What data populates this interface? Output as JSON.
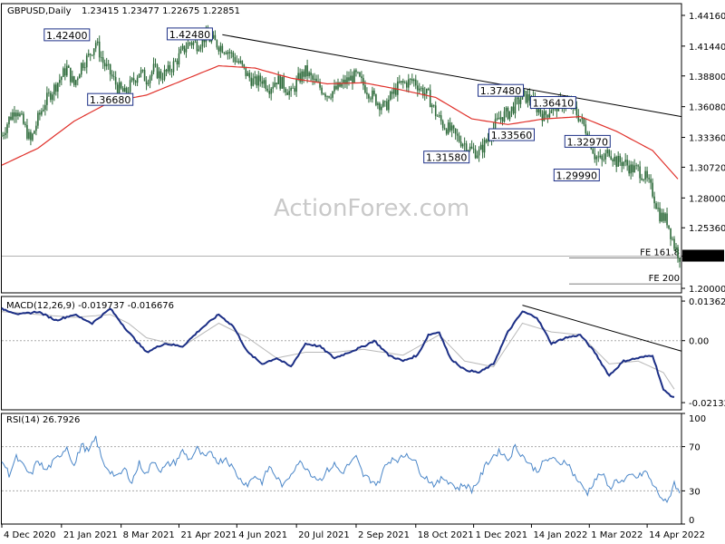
{
  "header": {
    "symbol": "GBPUSD,Daily",
    "ohlc": "1.23415 1.23477 1.22675 1.22851"
  },
  "watermark": "ActionForex.com",
  "colors": {
    "candle": "#2d6a3a",
    "ma": "#e0302a",
    "trend": "#000000",
    "macd": "#1c2f86",
    "signal": "#b8b8b8",
    "rsi": "#4a86c8",
    "label_border": "#1c2f86"
  },
  "chart_data": [
    {
      "type": "candlestick",
      "name": "price",
      "ylim": [
        1.196,
        1.452
      ],
      "y_ticks": [
        "1.44160",
        "1.41440",
        "1.38800",
        "1.36080",
        "1.33360",
        "1.30720",
        "1.28000",
        "1.25360",
        "1.22851",
        "1.20000"
      ],
      "x_ticks": [
        "4 Dec 2020",
        "21 Jan 2021",
        "8 Mar 2021",
        "21 Apr 2021",
        "4 Jun 2021",
        "20 Jul 2021",
        "2 Sep 2021",
        "18 Oct 2021",
        "1 Dec 2021",
        "14 Jan 2022",
        "1 Mar 2022",
        "14 Apr 2022"
      ],
      "x_tick_index": [
        0,
        33,
        66,
        98,
        130,
        163,
        196,
        229,
        261,
        293,
        325,
        357
      ],
      "close_series": [
        [
          0,
          1.335
        ],
        [
          4,
          1.35
        ],
        [
          8,
          1.36
        ],
        [
          12,
          1.345
        ],
        [
          16,
          1.33
        ],
        [
          20,
          1.35
        ],
        [
          24,
          1.365
        ],
        [
          28,
          1.375
        ],
        [
          32,
          1.385
        ],
        [
          36,
          1.395
        ],
        [
          40,
          1.38
        ],
        [
          44,
          1.398
        ],
        [
          48,
          1.405
        ],
        [
          52,
          1.418
        ],
        [
          56,
          1.4
        ],
        [
          60,
          1.39
        ],
        [
          64,
          1.378
        ],
        [
          68,
          1.372
        ],
        [
          72,
          1.382
        ],
        [
          76,
          1.392
        ],
        [
          80,
          1.385
        ],
        [
          84,
          1.394
        ],
        [
          88,
          1.388
        ],
        [
          92,
          1.392
        ],
        [
          96,
          1.4
        ],
        [
          100,
          1.41
        ],
        [
          104,
          1.418
        ],
        [
          108,
          1.416
        ],
        [
          112,
          1.422
        ],
        [
          116,
          1.42
        ],
        [
          120,
          1.415
        ],
        [
          124,
          1.412
        ],
        [
          128,
          1.405
        ],
        [
          132,
          1.398
        ],
        [
          136,
          1.388
        ],
        [
          140,
          1.382
        ],
        [
          144,
          1.385
        ],
        [
          148,
          1.378
        ],
        [
          152,
          1.385
        ],
        [
          156,
          1.38
        ],
        [
          160,
          1.372
        ],
        [
          164,
          1.385
        ],
        [
          168,
          1.392
        ],
        [
          172,
          1.384
        ],
        [
          176,
          1.378
        ],
        [
          180,
          1.372
        ],
        [
          184,
          1.375
        ],
        [
          188,
          1.38
        ],
        [
          192,
          1.385
        ],
        [
          196,
          1.388
        ],
        [
          200,
          1.38
        ],
        [
          204,
          1.372
        ],
        [
          208,
          1.365
        ],
        [
          212,
          1.36
        ],
        [
          216,
          1.372
        ],
        [
          220,
          1.38
        ],
        [
          224,
          1.382
        ],
        [
          228,
          1.384
        ],
        [
          232,
          1.376
        ],
        [
          236,
          1.37
        ],
        [
          240,
          1.355
        ],
        [
          244,
          1.345
        ],
        [
          248,
          1.34
        ],
        [
          252,
          1.333
        ],
        [
          256,
          1.328
        ],
        [
          260,
          1.322
        ],
        [
          264,
          1.32
        ],
        [
          268,
          1.33
        ],
        [
          272,
          1.342
        ],
        [
          276,
          1.352
        ],
        [
          280,
          1.355
        ],
        [
          284,
          1.362
        ],
        [
          288,
          1.37
        ],
        [
          292,
          1.368
        ],
        [
          296,
          1.36
        ],
        [
          300,
          1.352
        ],
        [
          304,
          1.36
        ],
        [
          308,
          1.362
        ],
        [
          312,
          1.365
        ],
        [
          316,
          1.36
        ],
        [
          320,
          1.35
        ],
        [
          324,
          1.338
        ],
        [
          328,
          1.318
        ],
        [
          332,
          1.312
        ],
        [
          336,
          1.322
        ],
        [
          340,
          1.312
        ],
        [
          344,
          1.312
        ],
        [
          348,
          1.306
        ],
        [
          352,
          1.305
        ],
        [
          356,
          1.298
        ],
        [
          360,
          1.285
        ],
        [
          364,
          1.265
        ],
        [
          368,
          1.26
        ],
        [
          372,
          1.238
        ],
        [
          375,
          1.2285
        ]
      ],
      "ma_series": [
        [
          0,
          1.309
        ],
        [
          20,
          1.324
        ],
        [
          40,
          1.348
        ],
        [
          60,
          1.365
        ],
        [
          80,
          1.371
        ],
        [
          100,
          1.384
        ],
        [
          120,
          1.397
        ],
        [
          140,
          1.395
        ],
        [
          160,
          1.386
        ],
        [
          180,
          1.381
        ],
        [
          200,
          1.382
        ],
        [
          220,
          1.376
        ],
        [
          240,
          1.369
        ],
        [
          260,
          1.35
        ],
        [
          280,
          1.345
        ],
        [
          300,
          1.35
        ],
        [
          320,
          1.352
        ],
        [
          340,
          1.339
        ],
        [
          360,
          1.322
        ],
        [
          375,
          1.295
        ]
      ],
      "trendline": [
        [
          122,
          1.4245
        ],
        [
          390,
          1.352
        ]
      ],
      "level_labels": [
        {
          "text": "1.42400",
          "x": 36,
          "y": 1.424
        },
        {
          "text": "1.42480",
          "x": 104,
          "y": 1.4248
        },
        {
          "text": "1.36680",
          "x": 60,
          "y": 1.3668
        },
        {
          "text": "1.37480",
          "x": 276,
          "y": 1.3748
        },
        {
          "text": "1.36410",
          "x": 305,
          "y": 1.3641
        },
        {
          "text": "1.33560",
          "x": 282,
          "y": 1.3356
        },
        {
          "text": "1.31580",
          "x": 246,
          "y": 1.3158
        },
        {
          "text": "1.32970",
          "x": 324,
          "y": 1.3297
        },
        {
          "text": "1.29990",
          "x": 318,
          "y": 1.2999
        }
      ],
      "fib_levels": [
        {
          "text": "FE 161.8",
          "y": 1.2285
        },
        {
          "text": "FE 200",
          "y": 1.2055
        }
      ],
      "last_price": "1.22851"
    },
    {
      "type": "line",
      "name": "MACD",
      "label": "MACD(12,26,9) -0.019737 -0.016676",
      "ylim": [
        -0.0238,
        0.0152
      ],
      "y_ticks": [
        "0.013621",
        "0.00",
        "-0.021325"
      ],
      "zero_line": 0,
      "macd_series": [
        [
          0,
          0.011
        ],
        [
          10,
          0.009
        ],
        [
          20,
          0.01
        ],
        [
          30,
          0.007
        ],
        [
          40,
          0.009
        ],
        [
          50,
          0.006
        ],
        [
          60,
          0.011
        ],
        [
          70,
          0.003
        ],
        [
          80,
          -0.004
        ],
        [
          90,
          -0.001
        ],
        [
          100,
          -0.002
        ],
        [
          110,
          0.004
        ],
        [
          120,
          0.009
        ],
        [
          128,
          0.005
        ],
        [
          136,
          -0.004
        ],
        [
          144,
          -0.008
        ],
        [
          152,
          -0.006
        ],
        [
          160,
          -0.009
        ],
        [
          168,
          -0.001
        ],
        [
          176,
          -0.002
        ],
        [
          184,
          -0.006
        ],
        [
          192,
          -0.004
        ],
        [
          200,
          -0.002
        ],
        [
          206,
          0.0
        ],
        [
          214,
          -0.005
        ],
        [
          222,
          -0.007
        ],
        [
          230,
          -0.005
        ],
        [
          236,
          0.002
        ],
        [
          242,
          0.003
        ],
        [
          248,
          -0.006
        ],
        [
          256,
          -0.01
        ],
        [
          264,
          -0.011
        ],
        [
          272,
          -0.008
        ],
        [
          280,
          0.003
        ],
        [
          288,
          0.01
        ],
        [
          296,
          0.008
        ],
        [
          304,
          -0.001
        ],
        [
          312,
          0.001
        ],
        [
          320,
          0.002
        ],
        [
          328,
          -0.004
        ],
        [
          336,
          -0.012
        ],
        [
          344,
          -0.007
        ],
        [
          352,
          -0.006
        ],
        [
          360,
          -0.005
        ],
        [
          366,
          -0.017
        ],
        [
          372,
          -0.0197
        ]
      ],
      "signal_series": [
        [
          0,
          0.01
        ],
        [
          20,
          0.009
        ],
        [
          40,
          0.008
        ],
        [
          60,
          0.009
        ],
        [
          70,
          0.006
        ],
        [
          80,
          0.001
        ],
        [
          100,
          -0.002
        ],
        [
          120,
          0.006
        ],
        [
          136,
          0.001
        ],
        [
          152,
          -0.006
        ],
        [
          168,
          -0.004
        ],
        [
          184,
          -0.004
        ],
        [
          200,
          -0.003
        ],
        [
          222,
          -0.005
        ],
        [
          242,
          0.002
        ],
        [
          256,
          -0.007
        ],
        [
          272,
          -0.009
        ],
        [
          288,
          0.006
        ],
        [
          304,
          0.003
        ],
        [
          320,
          0.002
        ],
        [
          336,
          -0.008
        ],
        [
          352,
          -0.007
        ],
        [
          366,
          -0.011
        ],
        [
          372,
          -0.0167
        ]
      ],
      "trendline": [
        [
          288,
          0.0122
        ],
        [
          380,
          -0.0036
        ]
      ]
    },
    {
      "type": "line",
      "name": "RSI",
      "label": "RSI(14) 26.7926",
      "ylim": [
        0,
        100
      ],
      "y_ticks": [
        "100",
        "70",
        "30",
        "0"
      ],
      "levels": [
        70,
        30
      ],
      "series": [
        [
          0,
          58
        ],
        [
          4,
          45
        ],
        [
          8,
          60
        ],
        [
          12,
          52
        ],
        [
          16,
          44
        ],
        [
          20,
          58
        ],
        [
          24,
          48
        ],
        [
          28,
          55
        ],
        [
          32,
          62
        ],
        [
          36,
          70
        ],
        [
          40,
          52
        ],
        [
          44,
          72
        ],
        [
          48,
          65
        ],
        [
          52,
          78
        ],
        [
          56,
          55
        ],
        [
          60,
          48
        ],
        [
          64,
          42
        ],
        [
          68,
          50
        ],
        [
          72,
          38
        ],
        [
          76,
          55
        ],
        [
          80,
          45
        ],
        [
          84,
          58
        ],
        [
          88,
          48
        ],
        [
          92,
          54
        ],
        [
          96,
          56
        ],
        [
          100,
          66
        ],
        [
          104,
          58
        ],
        [
          108,
          68
        ],
        [
          112,
          60
        ],
        [
          116,
          64
        ],
        [
          120,
          56
        ],
        [
          124,
          60
        ],
        [
          128,
          50
        ],
        [
          132,
          40
        ],
        [
          136,
          36
        ],
        [
          140,
          44
        ],
        [
          144,
          38
        ],
        [
          148,
          52
        ],
        [
          152,
          42
        ],
        [
          156,
          34
        ],
        [
          160,
          46
        ],
        [
          164,
          56
        ],
        [
          168,
          52
        ],
        [
          172,
          44
        ],
        [
          176,
          40
        ],
        [
          180,
          48
        ],
        [
          184,
          54
        ],
        [
          188,
          46
        ],
        [
          192,
          54
        ],
        [
          196,
          60
        ],
        [
          200,
          44
        ],
        [
          204,
          40
        ],
        [
          208,
          36
        ],
        [
          212,
          52
        ],
        [
          216,
          60
        ],
        [
          220,
          58
        ],
        [
          224,
          64
        ],
        [
          228,
          58
        ],
        [
          232,
          46
        ],
        [
          236,
          40
        ],
        [
          240,
          35
        ],
        [
          244,
          42
        ],
        [
          248,
          38
        ],
        [
          252,
          32
        ],
        [
          256,
          36
        ],
        [
          260,
          31
        ],
        [
          264,
          40
        ],
        [
          268,
          54
        ],
        [
          272,
          62
        ],
        [
          276,
          66
        ],
        [
          280,
          58
        ],
        [
          284,
          70
        ],
        [
          288,
          62
        ],
        [
          292,
          54
        ],
        [
          296,
          48
        ],
        [
          300,
          56
        ],
        [
          304,
          60
        ],
        [
          308,
          54
        ],
        [
          312,
          58
        ],
        [
          316,
          46
        ],
        [
          320,
          36
        ],
        [
          324,
          28
        ],
        [
          328,
          40
        ],
        [
          332,
          46
        ],
        [
          336,
          32
        ],
        [
          340,
          40
        ],
        [
          344,
          38
        ],
        [
          348,
          44
        ],
        [
          352,
          42
        ],
        [
          356,
          48
        ],
        [
          360,
          36
        ],
        [
          364,
          26
        ],
        [
          368,
          18
        ],
        [
          372,
          38
        ],
        [
          375,
          26.8
        ]
      ]
    }
  ]
}
